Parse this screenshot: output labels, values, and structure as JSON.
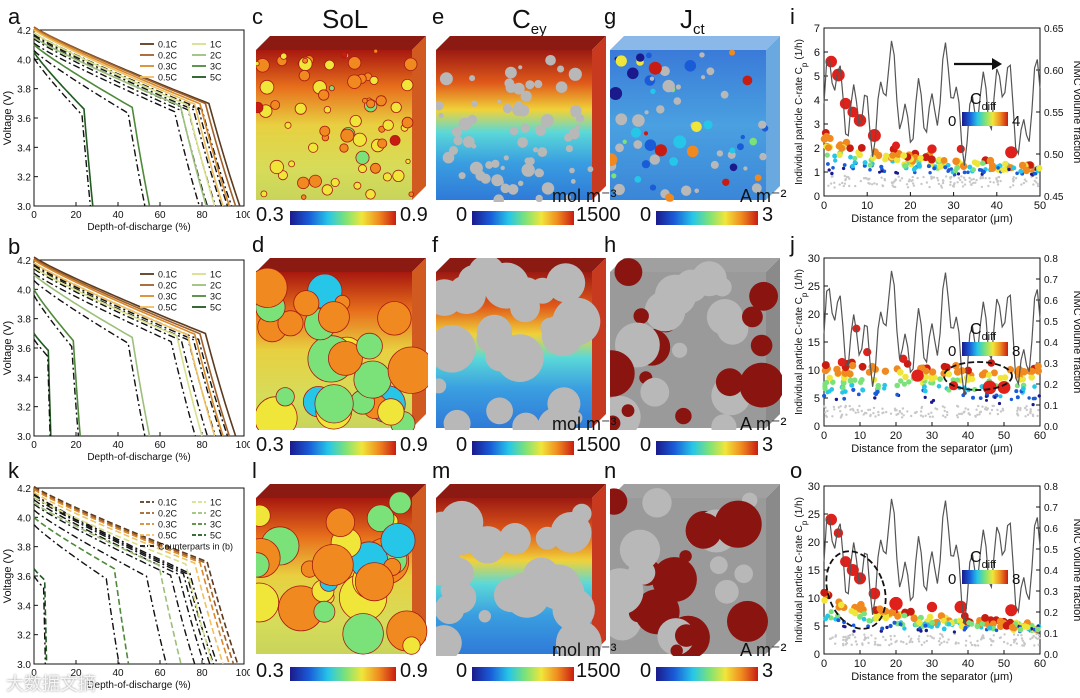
{
  "panels": {
    "a": "a",
    "b": "b",
    "k": "k",
    "c": "c",
    "d": "d",
    "l": "l",
    "e": "e",
    "f": "f",
    "m": "m",
    "g": "g",
    "h": "h",
    "n": "n",
    "i": "i",
    "j": "j",
    "o": "o"
  },
  "col_titles": {
    "sol": "SoL",
    "cey_main": "C",
    "cey_sub": "ey",
    "jct_main": "J",
    "jct_sub": "ct"
  },
  "colorbars": {
    "sol": {
      "min": "0.3",
      "max": "0.9",
      "unit": ""
    },
    "cey": {
      "min": "0",
      "max": "1500",
      "unit": "mol m⁻³"
    },
    "jct": {
      "min": "0",
      "max": "3",
      "unit": "A m⁻²"
    }
  },
  "voltage_plots": {
    "xlabel": "Depth-of-discharge (%)",
    "ylabel": "Voltage (V)",
    "yticks": [
      "3.0",
      "3.2",
      "3.4",
      "3.6",
      "3.8",
      "4.0",
      "4.2"
    ],
    "xticks": [
      "0",
      "20",
      "40",
      "60",
      "80",
      "100"
    ],
    "legend_a": [
      "0.1C",
      "0.2C",
      "0.3C",
      "0.5C",
      "1C",
      "2C",
      "3C",
      "5C"
    ],
    "legend_k": [
      "0.1C",
      "0.2C",
      "0.3C",
      "0.5C",
      "1C",
      "2C",
      "3C",
      "5C",
      "Counterparts in (b)"
    ]
  },
  "scatter_plots": {
    "xlabel": "Distance from the separator (μm)",
    "ylabel_left": "Individual particle C-rate C",
    "ylabel_left_sub": "p",
    "ylabel_left_unit": "(1/h)",
    "ylabel_right": "NMC volume fraction",
    "cdiff_main": "C",
    "cdiff_sub": "diff",
    "i": {
      "xticks": [
        "0",
        "10",
        "20",
        "30",
        "40",
        "50"
      ],
      "yticks": [
        "0",
        "1",
        "2",
        "3",
        "4",
        "5",
        "6",
        "7"
      ],
      "y2ticks": [
        "0.45",
        "0.50",
        "0.55",
        "0.60",
        "0.65"
      ],
      "cb_min": "0",
      "cb_max": "4"
    },
    "j": {
      "xticks": [
        "0",
        "10",
        "20",
        "30",
        "40",
        "50",
        "60"
      ],
      "yticks": [
        "0",
        "5",
        "10",
        "15",
        "20",
        "25",
        "30"
      ],
      "y2ticks": [
        "0.0",
        "0.1",
        "0.2",
        "0.3",
        "0.4",
        "0.5",
        "0.6",
        "0.7",
        "0.8"
      ],
      "cb_min": "0",
      "cb_max": "8"
    },
    "o": {
      "xticks": [
        "0",
        "10",
        "20",
        "30",
        "40",
        "50",
        "60"
      ],
      "yticks": [
        "0",
        "5",
        "10",
        "15",
        "20",
        "25",
        "30"
      ],
      "y2ticks": [
        "0.0",
        "0.1",
        "0.2",
        "0.3",
        "0.4",
        "0.5",
        "0.6",
        "0.7",
        "0.8"
      ],
      "cb_min": "0",
      "cb_max": "8"
    }
  },
  "colors": {
    "c01": "#5b3a1e",
    "c02": "#a0602a",
    "c03": "#d88a2a",
    "c05": "#f0c060",
    "c1": "#d8e08a",
    "c2": "#9cc07a",
    "c3": "#4e8a3a",
    "c5": "#1f5a1f",
    "gradient": [
      "#1a1a8c",
      "#1a5bd8",
      "#26c6e8",
      "#7be27a",
      "#f0e63a",
      "#f08a20",
      "#c81c12"
    ]
  },
  "watermark": "大数据文摘"
}
